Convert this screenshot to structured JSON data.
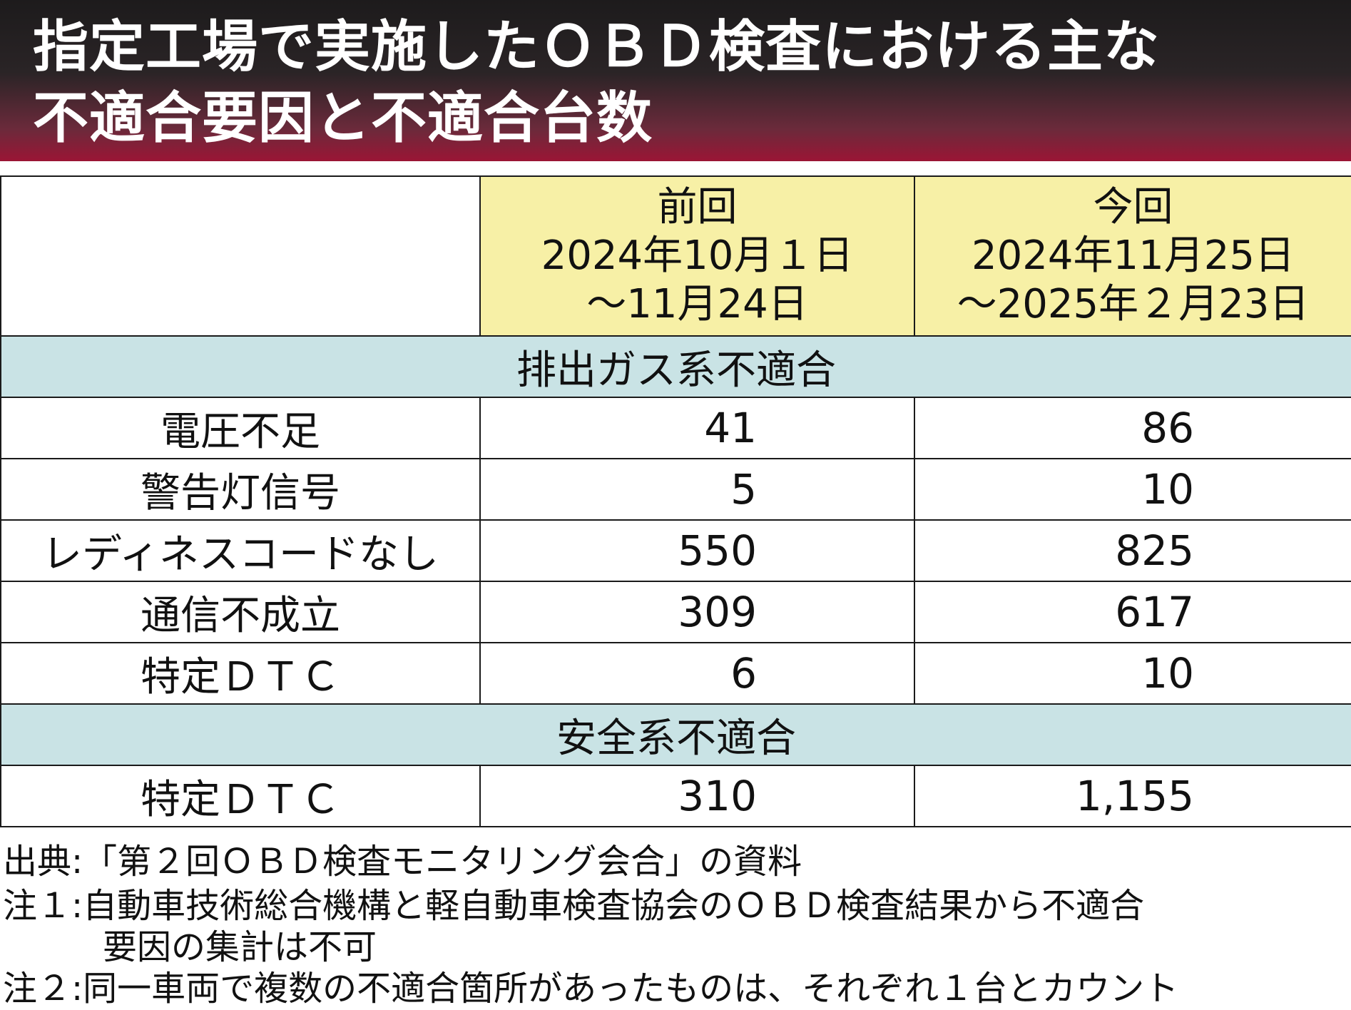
{
  "title": {
    "line1": "指定工場で実施したＯＢＤ検査における主な",
    "line2": "不適合要因と不適合台数"
  },
  "chart_data": {
    "type": "table",
    "columns": [
      {
        "label": "前回",
        "range_line1": "2024年10月１日",
        "range_line2": "～11月24日"
      },
      {
        "label": "今回",
        "range_line1": "2024年11月25日",
        "range_line2": "～2025年２月23日"
      }
    ],
    "sections": [
      {
        "title": "排出ガス系不適合",
        "rows": [
          {
            "label": "電圧不足",
            "values": [
              "41",
              "86"
            ]
          },
          {
            "label": "警告灯信号",
            "values": [
              "5",
              "10"
            ]
          },
          {
            "label": "レディネスコードなし",
            "values": [
              "550",
              "825"
            ]
          },
          {
            "label": "通信不成立",
            "values": [
              "309",
              "617"
            ]
          },
          {
            "label": "特定ＤＴＣ",
            "values": [
              "6",
              "10"
            ]
          }
        ]
      },
      {
        "title": "安全系不適合",
        "rows": [
          {
            "label": "特定ＤＴＣ",
            "values": [
              "310",
              "1,155"
            ]
          }
        ]
      }
    ]
  },
  "notes": {
    "source_key": "出典",
    "source_text": ":「第２回ＯＢＤ検査モニタリング会合」の資料",
    "note1_key": "注１",
    "note1_line1": ":自動車技術総合機構と軽自動車検査協会のＯＢＤ検査結果から不適合",
    "note1_line2": "要因の集計は不可",
    "note2_key": "注２",
    "note2_text": ":同一車両で複数の不適合箇所があったものは、それぞれ１台とカウント"
  }
}
